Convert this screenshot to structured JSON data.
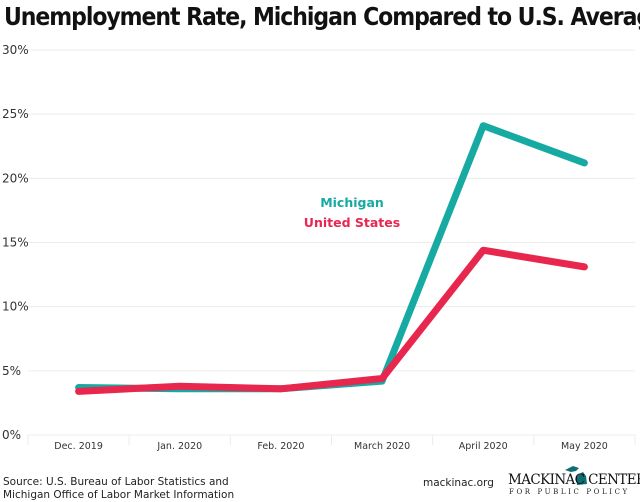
{
  "chart_data": {
    "type": "line",
    "title": "Unemployment Rate, Michigan Compared to U.S. Average",
    "categories": [
      "Dec. 2019",
      "Jan. 2020",
      "Feb. 2020",
      "March 2020",
      "April 2020",
      "May 2020"
    ],
    "series": [
      {
        "name": "Michigan",
        "color": "#16aaa3",
        "values": [
          3.7,
          3.6,
          3.6,
          4.2,
          24.1,
          21.2
        ]
      },
      {
        "name": "United States",
        "color": "#e8274f",
        "values": [
          3.4,
          3.8,
          3.6,
          4.4,
          14.4,
          13.1
        ]
      }
    ],
    "ylim": [
      0,
      30
    ],
    "yticks": [
      "0%",
      "5%",
      "10%",
      "15%",
      "20%",
      "25%",
      "30%"
    ],
    "ytick_values": [
      0,
      5,
      10,
      15,
      20,
      25,
      30
    ],
    "grid": true,
    "legend_placement": "center, inline labels"
  },
  "footer": {
    "source_line1": "Source: U.S. Bureau of Labor Statistics and",
    "source_line2": "Michigan Office of Labor Market Information",
    "site": "mackinac.org",
    "logo_name": "MACKINAC CENTER",
    "logo_sub": "FOR PUBLIC POLICY"
  }
}
